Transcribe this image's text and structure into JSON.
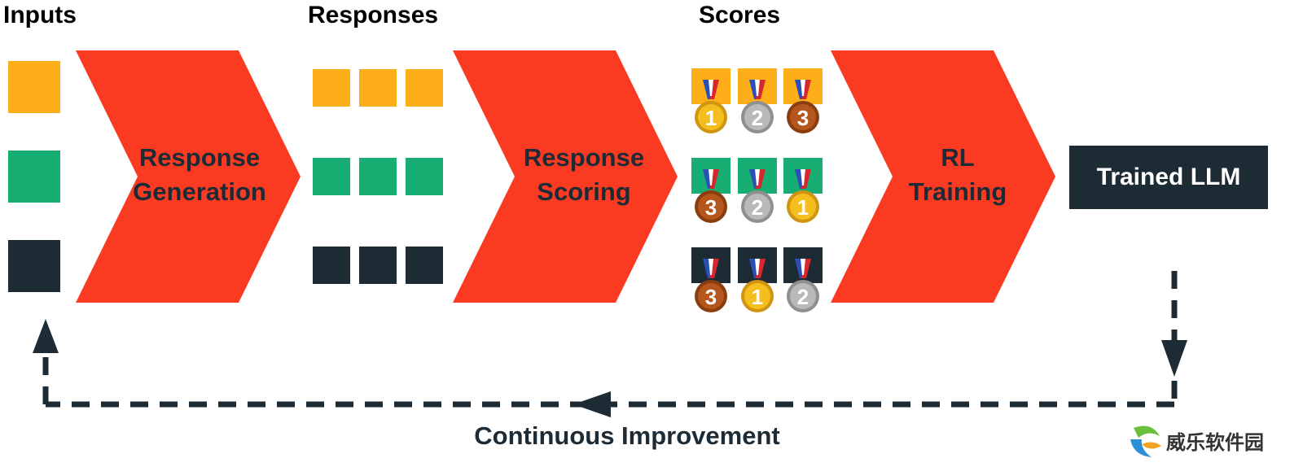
{
  "headers": {
    "inputs": "Inputs",
    "responses": "Responses",
    "scores": "Scores"
  },
  "stages": [
    {
      "line1": "Response",
      "line2": "Generation"
    },
    {
      "line1": "Response",
      "line2": "Scoring"
    },
    {
      "line1": "RL",
      "line2": "Training"
    }
  ],
  "output_box": "Trained LLM",
  "loop_label": "Continuous Improvement",
  "watermark_text": "威乐软件园",
  "colors": {
    "orange": "#fdae18",
    "green": "#17ad73",
    "navy": "#1d2b35",
    "red": "#fb3a22"
  },
  "rows": [
    {
      "color": "orange",
      "medals": [
        1,
        2,
        3
      ]
    },
    {
      "color": "green",
      "medals": [
        3,
        2,
        1
      ]
    },
    {
      "color": "navy",
      "medals": [
        3,
        1,
        2
      ]
    }
  ],
  "medals": {
    "1": {
      "label": "1",
      "fill": "#f4bf1e",
      "dark": "#d09410"
    },
    "2": {
      "label": "2",
      "fill": "#b9b9b9",
      "dark": "#8f8f8f"
    },
    "3": {
      "label": "3",
      "fill": "#b5561c",
      "dark": "#8a3e10"
    }
  }
}
